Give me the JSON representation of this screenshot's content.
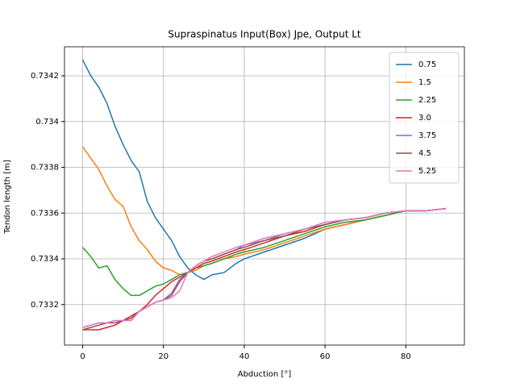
{
  "chart_data": {
    "type": "line",
    "title": "Supraspinatus Input(Box) Jpe, Output Lt",
    "x_label": "Abduction [°]",
    "y_label": "Tendon length [m]",
    "x": [
      0,
      2,
      4,
      6,
      8,
      10,
      12,
      14,
      16,
      18,
      20,
      22,
      24,
      26,
      28,
      30,
      32,
      35,
      38,
      40,
      45,
      50,
      55,
      60,
      65,
      70,
      75,
      80,
      85,
      90
    ],
    "series": [
      {
        "name": "0.75",
        "color": "#1f77b4",
        "values": [
          0.73427,
          0.7342,
          0.73415,
          0.73408,
          0.73398,
          0.7339,
          0.73383,
          0.73378,
          0.73365,
          0.73358,
          0.73353,
          0.73348,
          0.73341,
          0.73336,
          0.73333,
          0.73331,
          0.73333,
          0.73334,
          0.73338,
          0.7334,
          0.73343,
          0.73346,
          0.73349,
          0.73353,
          0.73355,
          0.73357,
          0.73359,
          0.73361,
          0.73361,
          0.73362
        ]
      },
      {
        "name": "1.5",
        "color": "#ff7f0e",
        "values": [
          0.73389,
          0.73384,
          0.73379,
          0.73372,
          0.73366,
          0.73363,
          0.73354,
          0.73348,
          0.73344,
          0.73339,
          0.73336,
          0.73335,
          0.73333,
          0.73334,
          0.73335,
          0.73337,
          0.73338,
          0.7334,
          0.73341,
          0.73342,
          0.73344,
          0.73347,
          0.7335,
          0.73353,
          0.73355,
          0.73357,
          0.73359,
          0.73361,
          0.73361,
          0.73362
        ]
      },
      {
        "name": "2.25",
        "color": "#2ca02c",
        "values": [
          0.73345,
          0.73341,
          0.73336,
          0.73337,
          0.73331,
          0.73327,
          0.73324,
          0.73324,
          0.73326,
          0.73328,
          0.73329,
          0.73331,
          0.73333,
          0.73334,
          0.73336,
          0.73337,
          0.73338,
          0.7334,
          0.73342,
          0.73343,
          0.73345,
          0.73348,
          0.73351,
          0.73354,
          0.73356,
          0.73357,
          0.73359,
          0.73361,
          0.73361,
          0.73362
        ]
      },
      {
        "name": "3.0",
        "color": "#d62728",
        "values": [
          0.73309,
          0.73309,
          0.73309,
          0.7331,
          0.73311,
          0.73313,
          0.73315,
          0.73317,
          0.7332,
          0.73324,
          0.73327,
          0.7333,
          0.73332,
          0.73334,
          0.73336,
          0.73338,
          0.73339,
          0.73341,
          0.73343,
          0.73344,
          0.73347,
          0.7335,
          0.73352,
          0.73355,
          0.73357,
          0.73358,
          0.7336,
          0.73361,
          0.73361,
          0.73362
        ]
      },
      {
        "name": "3.75",
        "color": "#9467bd",
        "values": [
          0.7331,
          0.73311,
          0.73312,
          0.73312,
          0.73313,
          0.73313,
          0.73314,
          0.73317,
          0.73319,
          0.73321,
          0.73322,
          0.73325,
          0.73331,
          0.73334,
          0.73337,
          0.73339,
          0.7334,
          0.73342,
          0.73344,
          0.73346,
          0.73348,
          0.73351,
          0.73353,
          0.73355,
          0.73357,
          0.73358,
          0.7336,
          0.73361,
          0.73361,
          0.73362
        ]
      },
      {
        "name": "4.5",
        "color": "#8c564b",
        "values": [
          0.73309,
          0.7331,
          0.73311,
          0.73312,
          0.73312,
          0.73313,
          0.73314,
          0.73317,
          0.73319,
          0.73321,
          0.73322,
          0.73324,
          0.7333,
          0.73334,
          0.73337,
          0.73339,
          0.7334,
          0.73342,
          0.73344,
          0.73345,
          0.73348,
          0.7335,
          0.73353,
          0.73355,
          0.73357,
          0.73358,
          0.7336,
          0.73361,
          0.73361,
          0.73362
        ]
      },
      {
        "name": "5.25",
        "color": "#e377c2",
        "values": [
          0.7331,
          0.73311,
          0.73312,
          0.73312,
          0.73313,
          0.73313,
          0.73313,
          0.73317,
          0.73319,
          0.73321,
          0.73322,
          0.73323,
          0.73326,
          0.73334,
          0.73337,
          0.73339,
          0.73341,
          0.73343,
          0.73345,
          0.73346,
          0.73349,
          0.73351,
          0.73353,
          0.73356,
          0.73357,
          0.73358,
          0.7336,
          0.73361,
          0.73361,
          0.73362
        ]
      }
    ],
    "xlim": [
      -4.5,
      94.5
    ],
    "xticks": [
      0,
      20,
      40,
      60,
      80
    ],
    "ylim": [
      0.733023,
      0.734327
    ],
    "yticks": [
      0.7332,
      0.7334,
      0.7336,
      0.7338,
      0.734,
      0.7342
    ],
    "grid": true,
    "legend": "upper right"
  }
}
